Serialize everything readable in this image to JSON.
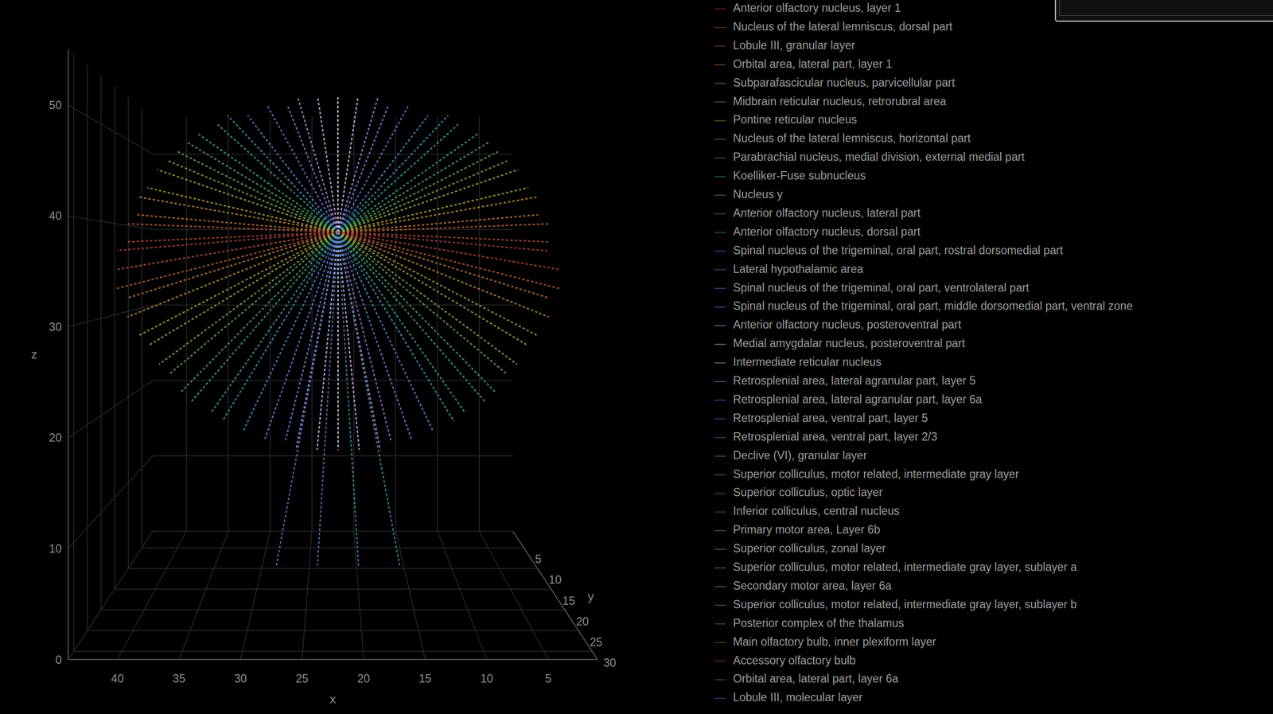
{
  "chart_data": {
    "type": "scatter3d",
    "x_label": "x",
    "y_label": "y",
    "z_label": "z",
    "xlim": [
      1,
      44
    ],
    "xticks": [
      5,
      10,
      15,
      20,
      25,
      30,
      35,
      40
    ],
    "ylim": [
      1,
      32
    ],
    "yticks": [
      5,
      10,
      15,
      20,
      25,
      30
    ],
    "zlim": [
      0,
      55
    ],
    "zticks": [
      0,
      10,
      20,
      30,
      40,
      50
    ],
    "grid": true,
    "legend": "right",
    "series": [
      {
        "name": "Anterior olfactory nucleus, layer 1",
        "color": "#b0413e",
        "x": [
          22,
          1,
          null,
          22,
          43
        ],
        "y": [
          16,
          14,
          null,
          16,
          18
        ],
        "z": [
          39,
          37,
          null,
          39,
          37
        ]
      },
      {
        "name": "Nucleus of the lateral lemniscus, dorsal part",
        "color": "#b8503a",
        "x": [
          22,
          1,
          null,
          22,
          43
        ],
        "y": [
          16,
          14,
          null,
          16,
          18
        ],
        "z": [
          39,
          38,
          null,
          39,
          35
        ]
      },
      {
        "name": "Lobule III, granular layer",
        "color": "#c06238",
        "x": [
          22,
          1,
          null,
          22,
          43
        ],
        "y": [
          16,
          14,
          null,
          16,
          18
        ],
        "z": [
          39,
          40,
          null,
          39,
          33
        ]
      },
      {
        "name": "Orbital area, lateral part, layer 1",
        "color": "#c47a36",
        "x": [
          22,
          2,
          null,
          22,
          42
        ],
        "y": [
          16,
          14,
          null,
          16,
          18
        ],
        "z": [
          39,
          41,
          null,
          39,
          32
        ]
      },
      {
        "name": "Subparafascicular nucleus, parvicellular part",
        "color": "#c09236",
        "x": [
          22,
          2,
          null,
          22,
          42
        ],
        "y": [
          16,
          14,
          null,
          16,
          18
        ],
        "z": [
          39,
          43,
          null,
          39,
          30
        ]
      },
      {
        "name": "Midbrain reticular nucleus, retrorubral area",
        "color": "#b4a63a",
        "x": [
          22,
          3,
          null,
          22,
          41
        ],
        "y": [
          16,
          14,
          null,
          16,
          18
        ],
        "z": [
          39,
          44,
          null,
          39,
          28
        ]
      },
      {
        "name": "Pontine reticular nucleus",
        "color": "#9cb040",
        "x": [
          22,
          4,
          null,
          22,
          40
        ],
        "y": [
          16,
          14,
          null,
          16,
          18
        ],
        "z": [
          39,
          46,
          null,
          39,
          27
        ]
      },
      {
        "name": "Nucleus of the lateral lemniscus, horizontal part",
        "color": "#7cb048",
        "x": [
          22,
          5,
          null,
          22,
          39
        ],
        "y": [
          16,
          14,
          null,
          16,
          18
        ],
        "z": [
          39,
          47,
          null,
          39,
          25
        ]
      },
      {
        "name": "Parabrachial nucleus, medial division, external medial part",
        "color": "#5eae58",
        "x": [
          22,
          6,
          null,
          22,
          38
        ],
        "y": [
          16,
          14,
          null,
          16,
          18
        ],
        "z": [
          39,
          48,
          null,
          39,
          24
        ]
      },
      {
        "name": "Koelliker-Fuse subnucleus",
        "color": "#48aa6c",
        "x": [
          22,
          7,
          null,
          22,
          37
        ],
        "y": [
          16,
          14,
          null,
          16,
          18
        ],
        "z": [
          39,
          49,
          null,
          39,
          22
        ]
      },
      {
        "name": "Nucleus y",
        "color": "#3ca888",
        "x": [
          22,
          8,
          null,
          22,
          36
        ],
        "y": [
          16,
          14,
          null,
          16,
          18
        ],
        "z": [
          39,
          50,
          null,
          39,
          21
        ]
      },
      {
        "name": "Anterior olfactory nucleus, lateral part",
        "color": "#38a4a4",
        "x": [
          22,
          10,
          null,
          22,
          34
        ],
        "y": [
          16,
          14,
          null,
          16,
          18
        ],
        "z": [
          39,
          51,
          null,
          39,
          20
        ]
      },
      {
        "name": "Anterior olfactory nucleus, dorsal part",
        "color": "#3c9cbc",
        "x": [
          22,
          11,
          null,
          22,
          33
        ],
        "y": [
          16,
          14,
          null,
          16,
          18
        ],
        "z": [
          39,
          52,
          null,
          39,
          19
        ]
      },
      {
        "name": "Spinal nucleus of the trigeminal, oral part, rostral dorsomedial part",
        "color": "#4890d0",
        "x": [
          22,
          13,
          null,
          22,
          31
        ],
        "y": [
          16,
          14,
          null,
          16,
          18
        ],
        "z": [
          39,
          52,
          null,
          39,
          18
        ]
      },
      {
        "name": "Lateral hypothalamic area",
        "color": "#5a84e0",
        "x": [
          22,
          15,
          null,
          22,
          29
        ],
        "y": [
          16,
          14,
          null,
          16,
          18
        ],
        "z": [
          39,
          53,
          null,
          39,
          17
        ]
      },
      {
        "name": "Spinal nucleus of the trigeminal, oral part, ventrolateral part",
        "color": "#7a84ec",
        "x": [
          22,
          17,
          null,
          22,
          27
        ],
        "y": [
          16,
          14,
          null,
          16,
          18
        ],
        "z": [
          39,
          53,
          null,
          39,
          17
        ]
      },
      {
        "name": "Spinal nucleus of the trigeminal, oral part, middle dorsomedial part, ventral zone",
        "color": "#9c90f4",
        "x": [
          22,
          18,
          null,
          22,
          26
        ],
        "y": [
          16,
          14,
          null,
          16,
          18
        ],
        "z": [
          39,
          54,
          null,
          39,
          16
        ]
      },
      {
        "name": "Anterior olfactory nucleus, posteroventral part",
        "color": "#c8c8ff",
        "x": [
          22,
          20,
          null,
          22,
          24
        ],
        "y": [
          16,
          14,
          null,
          16,
          18
        ],
        "z": [
          39,
          54,
          null,
          39,
          16
        ]
      },
      {
        "name": "Medial amygdalar nucleus, posteroventral part",
        "color": "#e8e8ff",
        "x": [
          22,
          22,
          null,
          22,
          22
        ],
        "y": [
          16,
          14,
          null,
          16,
          18
        ],
        "z": [
          39,
          54,
          null,
          39,
          16
        ]
      },
      {
        "name": "Intermediate reticular nucleus",
        "color": "#d4b4f0",
        "x": [
          22,
          24,
          null,
          22,
          20
        ],
        "y": [
          16,
          14,
          null,
          16,
          18
        ],
        "z": [
          39,
          54,
          null,
          39,
          16
        ]
      },
      {
        "name": "Retrosplenial area, lateral agranular part, layer 5",
        "color": "#b890e0",
        "x": [
          22,
          26,
          null,
          22,
          18
        ],
        "y": [
          16,
          14,
          null,
          16,
          18
        ],
        "z": [
          39,
          54,
          null,
          39,
          16
        ]
      },
      {
        "name": "Retrosplenial area, lateral agranular part, layer 6a",
        "color": "#8f7ae0",
        "x": [
          22,
          27,
          null,
          22,
          17
        ],
        "y": [
          16,
          14,
          null,
          16,
          18
        ],
        "z": [
          39,
          53,
          null,
          39,
          17
        ]
      },
      {
        "name": "Retrosplenial area, ventral part, layer 5",
        "color": "#6a80dc",
        "x": [
          22,
          29,
          null,
          22,
          15
        ],
        "y": [
          16,
          14,
          null,
          16,
          18
        ],
        "z": [
          39,
          53,
          null,
          39,
          17
        ]
      },
      {
        "name": "Retrosplenial area, ventral part, layer 2/3",
        "color": "#4e8ed0",
        "x": [
          22,
          31,
          null,
          22,
          13
        ],
        "y": [
          16,
          14,
          null,
          16,
          18
        ],
        "z": [
          39,
          52,
          null,
          39,
          18
        ]
      },
      {
        "name": "Declive (VI), granular layer",
        "color": "#3e9cbc",
        "x": [
          22,
          33,
          null,
          22,
          11
        ],
        "y": [
          16,
          14,
          null,
          16,
          18
        ],
        "z": [
          39,
          52,
          null,
          39,
          19
        ]
      },
      {
        "name": "Superior colliculus, motor related, intermediate gray layer",
        "color": "#38a6a0",
        "x": [
          22,
          34,
          null,
          22,
          10
        ],
        "y": [
          16,
          14,
          null,
          16,
          18
        ],
        "z": [
          39,
          51,
          null,
          39,
          20
        ]
      },
      {
        "name": "Superior colliculus, optic layer",
        "color": "#3caa84",
        "x": [
          22,
          36,
          null,
          22,
          8
        ],
        "y": [
          16,
          14,
          null,
          16,
          18
        ],
        "z": [
          39,
          50,
          null,
          39,
          21
        ]
      },
      {
        "name": "Inferior colliculus, central nucleus",
        "color": "#4cac68",
        "x": [
          22,
          37,
          null,
          22,
          7
        ],
        "y": [
          16,
          14,
          null,
          16,
          18
        ],
        "z": [
          39,
          49,
          null,
          39,
          22
        ]
      },
      {
        "name": "Primary motor area, Layer 6b",
        "color": "#62ae54",
        "x": [
          22,
          38,
          null,
          22,
          6
        ],
        "y": [
          16,
          14,
          null,
          16,
          18
        ],
        "z": [
          39,
          48,
          null,
          39,
          24
        ]
      },
      {
        "name": "Superior colliculus, zonal layer",
        "color": "#80b046",
        "x": [
          22,
          39,
          null,
          22,
          5
        ],
        "y": [
          16,
          14,
          null,
          16,
          18
        ],
        "z": [
          39,
          47,
          null,
          39,
          25
        ]
      },
      {
        "name": "Superior colliculus, motor related, intermediate gray layer, sublayer a",
        "color": "#a0ae3e",
        "x": [
          22,
          40,
          null,
          22,
          4
        ],
        "y": [
          16,
          14,
          null,
          16,
          18
        ],
        "z": [
          39,
          46,
          null,
          39,
          27
        ]
      },
      {
        "name": "Secondary motor area, layer 6a",
        "color": "#b8a23a",
        "x": [
          22,
          41,
          null,
          22,
          3
        ],
        "y": [
          16,
          14,
          null,
          16,
          18
        ],
        "z": [
          39,
          44,
          null,
          39,
          28
        ]
      },
      {
        "name": "Superior colliculus, motor related, intermediate gray layer, sublayer b",
        "color": "#c28c36",
        "x": [
          22,
          42,
          null,
          22,
          2
        ],
        "y": [
          16,
          14,
          null,
          16,
          18
        ],
        "z": [
          39,
          43,
          null,
          39,
          30
        ]
      },
      {
        "name": "Posterior complex of the thalamus",
        "color": "#c47436",
        "x": [
          22,
          42,
          null,
          22,
          2
        ],
        "y": [
          16,
          14,
          null,
          16,
          18
        ],
        "z": [
          39,
          41,
          null,
          39,
          32
        ]
      },
      {
        "name": "Main olfactory bulb, inner plexiform layer",
        "color": "#be5c3a",
        "x": [
          22,
          43,
          null,
          22,
          1
        ],
        "y": [
          16,
          14,
          null,
          16,
          18
        ],
        "z": [
          39,
          40,
          null,
          39,
          33
        ]
      },
      {
        "name": "Accessory olfactory bulb",
        "color": "#b4483c",
        "x": [
          22,
          43,
          null,
          22,
          1
        ],
        "y": [
          16,
          14,
          null,
          16,
          18
        ],
        "z": [
          39,
          38,
          null,
          39,
          35
        ]
      },
      {
        "name": "Orbital area, lateral part, layer 6a",
        "color": "#3a8fb0",
        "x": [
          22,
          16,
          null,
          22,
          20
        ],
        "y": [
          16,
          16,
          null,
          16,
          16
        ],
        "z": [
          39,
          3,
          null,
          39,
          3
        ]
      },
      {
        "name": "Lobule III, molecular layer",
        "color": "#4a7fc0",
        "x": [
          22,
          24,
          null,
          22,
          28
        ],
        "y": [
          16,
          16,
          null,
          16,
          16
        ],
        "z": [
          39,
          3,
          null,
          39,
          3
        ]
      }
    ]
  }
}
